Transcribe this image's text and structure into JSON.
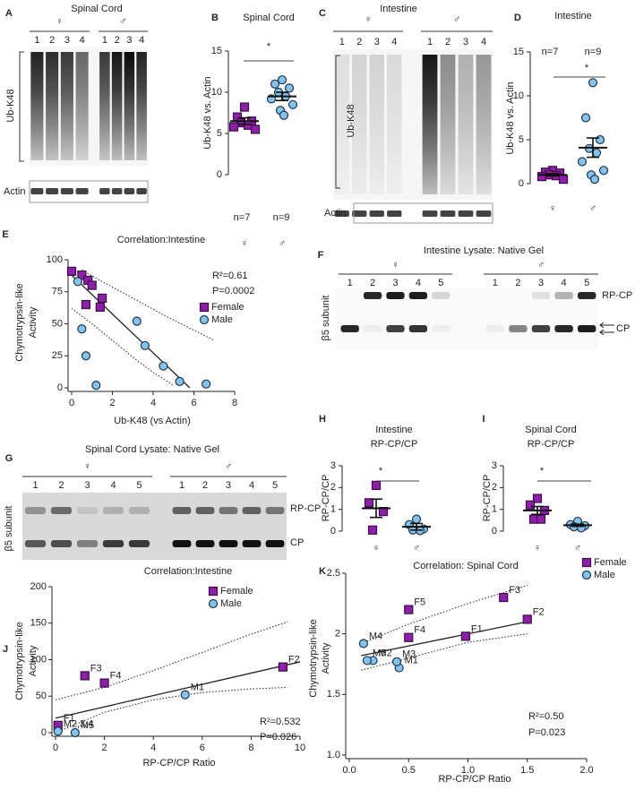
{
  "chart_data": [
    {
      "type": "strip",
      "panel": "B",
      "title": [
        "Spinal Cord"
      ],
      "ylabel": [
        "Ub-K48 vs. Actin"
      ],
      "categories": [
        "♀",
        "♂"
      ],
      "series": [
        {
          "color": "#8e1fa8",
          "marker": "square",
          "values": [
            8.2,
            7.0,
            6.5,
            6.3,
            6.0,
            5.8,
            5.5
          ],
          "mean": 6.5,
          "sem": 0.4,
          "n_label": "n=7"
        },
        {
          "color": "#86c3ea",
          "marker": "circle",
          "values": [
            11.5,
            11.0,
            10.5,
            10.0,
            9.5,
            9.2,
            8.5,
            7.8,
            7.2
          ],
          "mean": 9.5,
          "sem": 0.5,
          "n_label": "n=9"
        }
      ],
      "ylim": [
        0,
        15
      ],
      "yticks": [
        0,
        5,
        10,
        15
      ],
      "significance": "*"
    },
    {
      "type": "strip",
      "panel": "D",
      "title": [
        "Intestine"
      ],
      "ylabel": [
        "Ub-K48 vs. Actin"
      ],
      "categories": [
        "♀",
        "♂"
      ],
      "series": [
        {
          "color": "#8e1fa8",
          "marker": "square",
          "values": [
            1.5,
            1.3,
            1.2,
            1.0,
            0.9,
            0.8,
            0.5
          ],
          "mean": 1.0,
          "sem": 0.13,
          "n_label": "n=7"
        },
        {
          "color": "#86c3ea",
          "marker": "circle",
          "values": [
            11.5,
            7.5,
            5.0,
            4.0,
            3.5,
            2.5,
            1.5,
            1.0,
            0.5
          ],
          "mean": 4.1,
          "sem": 1.1,
          "n_label": "n=9"
        }
      ],
      "ylim": [
        0,
        15
      ],
      "yticks": [
        0,
        5,
        10,
        15
      ],
      "significance": "*"
    },
    {
      "type": "scatter",
      "panel": "E",
      "title": "Correlation:Intestine",
      "xlabel": "Ub-K48 (vs Actin)",
      "ylabel": [
        "Chymotrypsin-like",
        "Activity"
      ],
      "series": [
        {
          "name": "Female",
          "color": "#8e1fa8",
          "marker": "square",
          "x": [
            0,
            0.5,
            0.8,
            1.0,
            1.5,
            0.7,
            1.4
          ],
          "values": [
            91,
            88,
            84,
            80,
            70,
            65,
            63
          ]
        },
        {
          "name": "Male",
          "color": "#86c3ea",
          "marker": "circle",
          "x": [
            0.3,
            0.5,
            0.7,
            1.2,
            3.2,
            3.6,
            4.5,
            5.3,
            6.6
          ],
          "values": [
            83,
            46,
            25,
            2,
            52,
            33,
            17,
            5,
            3
          ]
        }
      ],
      "fit": {
        "x": [
          0,
          5.8
        ],
        "values": [
          88,
          0
        ]
      },
      "ci_upper": {
        "x": [
          0.5,
          1.5,
          3,
          4.5,
          6,
          7
        ],
        "values": [
          92,
          83,
          70,
          57,
          45,
          37
        ]
      },
      "ci_lower": {
        "x": [
          0,
          1,
          2,
          3,
          4,
          5
        ],
        "values": [
          62,
          50,
          37,
          24,
          12,
          2
        ]
      },
      "annotations": [
        "R²=0.61",
        "P=0.0002"
      ],
      "legend": "right",
      "xlim": [
        0,
        8
      ],
      "xticks": [
        0,
        2,
        4,
        6,
        8
      ],
      "ylim": [
        0,
        100
      ],
      "yticks": [
        0,
        25,
        50,
        75,
        100
      ]
    },
    {
      "type": "strip",
      "panel": "H",
      "title": [
        "Intestine",
        "RP-CP/CP"
      ],
      "ylabel": [
        "RP-CP/CP"
      ],
      "categories": [
        "♀",
        "♂"
      ],
      "series": [
        {
          "color": "#8e1fa8",
          "marker": "square",
          "values": [
            2.1,
            1.3,
            0.9,
            0.05
          ],
          "mean": 1.05,
          "sem": 0.42
        },
        {
          "color": "#86c3ea",
          "marker": "circle",
          "values": [
            0.55,
            0.3,
            0.1,
            0.05,
            0.02
          ],
          "mean": 0.2,
          "sem": 0.15
        }
      ],
      "ylim": [
        0,
        3
      ],
      "yticks": [
        0,
        1,
        2,
        3
      ],
      "significance": "*"
    },
    {
      "type": "strip",
      "panel": "I",
      "title": [
        "Spinal Cord",
        "RP-CP/CP"
      ],
      "ylabel": [
        "RP-CP/CP"
      ],
      "categories": [
        "♀",
        "♂"
      ],
      "series": [
        {
          "color": "#8e1fa8",
          "marker": "square",
          "values": [
            1.5,
            1.2,
            0.95,
            0.55,
            0.55
          ],
          "mean": 0.95,
          "sem": 0.18
        },
        {
          "color": "#86c3ea",
          "marker": "circle",
          "values": [
            0.45,
            0.3,
            0.25,
            0.2,
            0.15
          ],
          "mean": 0.27,
          "sem": 0.05
        }
      ],
      "ylim": [
        0,
        3
      ],
      "yticks": [
        0,
        1,
        2,
        3
      ],
      "significance": "*"
    },
    {
      "type": "scatter",
      "panel": "J",
      "title": "Correlation:Intestine",
      "xlabel": "RP-CP/CP Ratio",
      "ylabel": [
        "Chymotrypsin-like",
        "Activity"
      ],
      "series": [
        {
          "name": "Female",
          "color": "#8e1fa8",
          "marker": "square",
          "x": [
            0.1,
            1.2,
            2.0,
            9.3
          ],
          "values": [
            10,
            78,
            68,
            90
          ],
          "point_labels": [
            "F1",
            "F3",
            "F4",
            "F2"
          ]
        },
        {
          "name": "Male",
          "color": "#86c3ea",
          "marker": "circle",
          "x": [
            5.3,
            0.1,
            0.8
          ],
          "values": [
            52,
            2,
            0
          ],
          "point_labels": [
            "M1",
            "M2,3,4",
            "M5"
          ]
        }
      ],
      "fit": {
        "x": [
          0,
          10
        ],
        "values": [
          20,
          97
        ]
      },
      "ci_upper": {
        "x": [
          0,
          2,
          4,
          6,
          8,
          9.5
        ],
        "values": [
          45,
          62,
          85,
          110,
          135,
          152
        ]
      },
      "ci_lower": {
        "x": [
          0,
          2,
          4,
          6,
          8,
          9.5
        ],
        "values": [
          0,
          28,
          45,
          55,
          60,
          62
        ]
      },
      "annotations": [
        "R²=0.532",
        "P=0.026"
      ],
      "legend": "upper right",
      "xlim": [
        0,
        10
      ],
      "xticks": [
        0,
        2,
        4,
        6,
        8,
        10
      ],
      "ylim": [
        0,
        200
      ],
      "yticks": [
        0,
        50,
        100,
        150,
        200
      ]
    },
    {
      "type": "scatter",
      "panel": "K",
      "title": "Correlation: Spinal Cord",
      "xlabel": "RP-CP/CP Ratio",
      "ylabel": [
        "Chymotrypsin-like",
        "Activity"
      ],
      "series": [
        {
          "name": "Female",
          "color": "#8e1fa8",
          "marker": "square",
          "x": [
            0.5,
            1.3,
            1.5,
            0.98,
            0.5
          ],
          "values": [
            2.2,
            2.3,
            2.12,
            1.98,
            1.97
          ],
          "point_labels": [
            "F5",
            "F3",
            "F2",
            "F1",
            "F4"
          ]
        },
        {
          "name": "Male",
          "color": "#86c3ea",
          "marker": "circle",
          "x": [
            0.42,
            0.2,
            0.4,
            0.12,
            0.15
          ],
          "values": [
            1.72,
            1.78,
            1.77,
            1.92,
            1.78
          ],
          "point_labels": [
            "M1",
            "M2",
            "M3",
            "M4",
            "M5"
          ]
        }
      ],
      "fit": {
        "x": [
          0.1,
          1.5
        ],
        "values": [
          1.82,
          2.1
        ]
      },
      "ci_upper": {
        "x": [
          0.1,
          0.5,
          1,
          1.5
        ],
        "values": [
          1.92,
          2.08,
          2.25,
          2.4
        ]
      },
      "ci_lower": {
        "x": [
          0.1,
          0.5,
          1,
          1.5
        ],
        "values": [
          1.7,
          1.8,
          1.93,
          2.0
        ]
      },
      "annotations": [
        "R²=0.50",
        "P=0.023"
      ],
      "legend": "upper right",
      "xlim": [
        0,
        2
      ],
      "xticks": [
        {
          "value": 0,
          "label": "0.0"
        },
        0.5,
        {
          "value": 1,
          "label": "1.0"
        },
        1.5,
        {
          "value": 2,
          "label": "2.0"
        }
      ],
      "ylim": [
        1,
        2.5
      ],
      "yticks": [
        {
          "value": 1,
          "label": "1.0"
        },
        1.5,
        2,
        2.5
      ]
    }
  ],
  "blots": [
    {
      "panel": "A",
      "title": "Spinal Cord",
      "style": "smear",
      "groups": [
        {
          "label": "♀",
          "color": "#b02fc9",
          "lanes": [
            "1",
            "2",
            "3",
            "4"
          ]
        },
        {
          "label": "♂",
          "color": "#5aaee0",
          "lanes": [
            "1",
            "2",
            "3",
            "4"
          ]
        }
      ],
      "row_labels": [
        "Ub-K48",
        "Actin"
      ]
    },
    {
      "panel": "C",
      "title": "Intestine",
      "style": "smear",
      "groups": [
        {
          "label": "♀",
          "color": "#b02fc9",
          "lanes": [
            "1",
            "2",
            "3",
            "4"
          ]
        },
        {
          "label": "♂",
          "color": "#5aaee0",
          "lanes": [
            "1",
            "2",
            "3",
            "4"
          ]
        }
      ],
      "row_labels": [
        "Ub-K48",
        "Actin"
      ]
    },
    {
      "panel": "F",
      "title": "Intestine Lysate: Native Gel",
      "style": "gel",
      "groups": [
        {
          "label": "♀",
          "color": "#b02fc9",
          "lanes": [
            "1",
            "2",
            "3",
            "4",
            "5"
          ]
        },
        {
          "label": "♂",
          "color": "#5aaee0",
          "lanes": [
            "1",
            "2",
            "3",
            "4",
            "5"
          ]
        }
      ],
      "row_labels": [
        "β5 subunit"
      ],
      "band_labels": [
        "RP-CP",
        "CP"
      ]
    },
    {
      "panel": "G",
      "title": "Spinal Cord Lysate: Native Gel",
      "style": "gel",
      "groups": [
        {
          "label": "♀",
          "color": "#b02fc9",
          "lanes": [
            "1",
            "2",
            "3",
            "4",
            "5"
          ]
        },
        {
          "label": "♂",
          "color": "#5aaee0",
          "lanes": [
            "1",
            "2",
            "3",
            "4",
            "5"
          ]
        }
      ],
      "row_labels": [
        "β5 subunit"
      ],
      "band_labels": [
        "RP-CP",
        "CP"
      ]
    }
  ]
}
